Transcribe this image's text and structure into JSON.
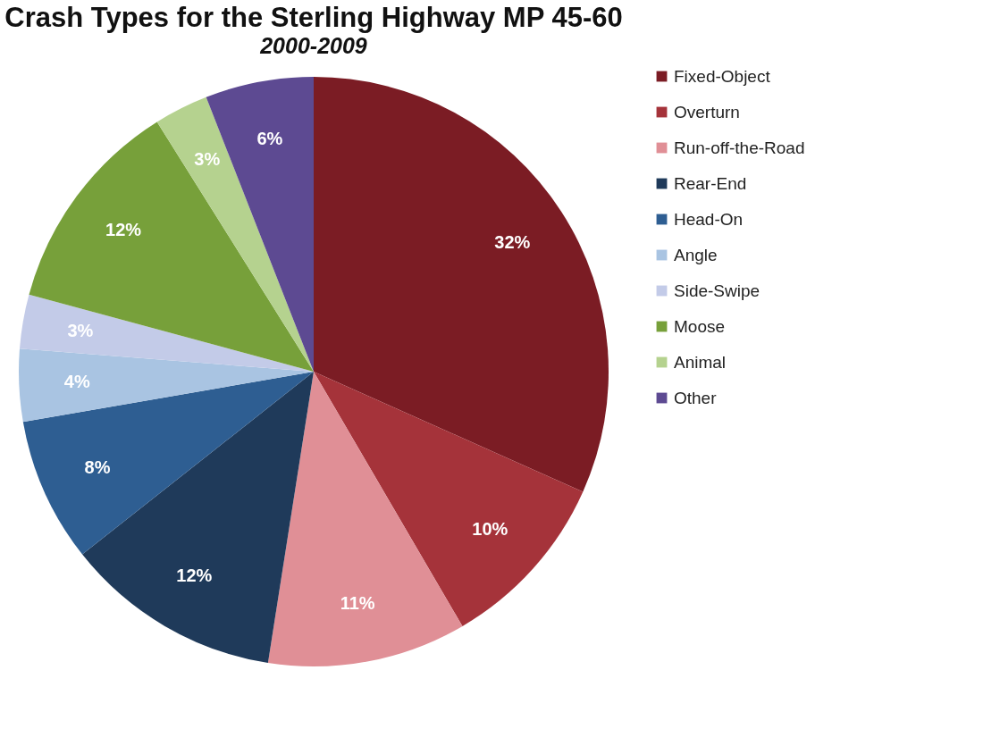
{
  "chart_data": {
    "type": "pie",
    "title": "Crash Types for the Sterling Highway MP 45-60",
    "subtitle": "2000-2009",
    "categories": [
      "Fixed-Object",
      "Overturn",
      "Run-off-the-Road",
      "Rear-End",
      "Head-On",
      "Angle",
      "Side-Swipe",
      "Moose",
      "Animal",
      "Other"
    ],
    "values": [
      32,
      10,
      11,
      12,
      8,
      4,
      3,
      12,
      3,
      6
    ],
    "value_labels": [
      "32%",
      "10%",
      "11%",
      "12%",
      "8%",
      "4%",
      "3%",
      "12%",
      "3%",
      "6%"
    ],
    "colors": [
      "#7b1c24",
      "#a5333a",
      "#e08f96",
      "#1f3a5a",
      "#2e5e92",
      "#a9c4e2",
      "#c3cbe8",
      "#77a03a",
      "#b5d28f",
      "#5d4a92"
    ],
    "legend": "right"
  }
}
